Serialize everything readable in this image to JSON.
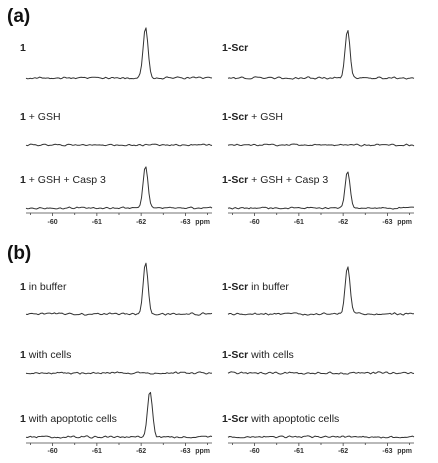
{
  "figure": {
    "panels": [
      {
        "label": "(a)"
      },
      {
        "label": "(b)"
      }
    ]
  },
  "chart_data": [
    {
      "type": "line",
      "panel": "(a)",
      "column": "left",
      "xlabel": "ppm",
      "xticks": [
        "-60",
        "-61",
        "-62",
        "-63"
      ],
      "xlim": [
        -59.4,
        -63.6
      ],
      "x_reversed": true,
      "series": [
        {
          "label_bold": "1",
          "label_rest": "",
          "peak_ppm": -62.1,
          "peak_height": 1.0,
          "noise": 0.055
        },
        {
          "label_bold": "1",
          "label_rest": " + GSH",
          "peak_ppm": -62.1,
          "peak_height": 0.0,
          "noise": 0.05
        },
        {
          "label_bold": "1",
          "label_rest": " + GSH + Casp 3",
          "peak_ppm": -62.1,
          "peak_height": 0.8,
          "noise": 0.055
        }
      ]
    },
    {
      "type": "line",
      "panel": "(a)",
      "column": "right",
      "xlabel": "ppm",
      "xticks": [
        "-60",
        "-61",
        "-62",
        "-63"
      ],
      "xlim": [
        -59.4,
        -63.6
      ],
      "x_reversed": true,
      "series": [
        {
          "label_bold": "1-Scr",
          "label_rest": "",
          "peak_ppm": -62.1,
          "peak_height": 0.92,
          "noise": 0.06
        },
        {
          "label_bold": "1-Scr",
          "label_rest": " + GSH",
          "peak_ppm": -62.1,
          "peak_height": 0.0,
          "noise": 0.05
        },
        {
          "label_bold": "1-Scr",
          "label_rest": " + GSH + Casp 3",
          "peak_ppm": -62.1,
          "peak_height": 0.72,
          "noise": 0.055
        }
      ]
    },
    {
      "type": "line",
      "panel": "(b)",
      "column": "left",
      "xlabel": "ppm",
      "xticks": [
        "-60",
        "-61",
        "-62",
        "-63"
      ],
      "xlim": [
        -59.4,
        -63.6
      ],
      "x_reversed": true,
      "series": [
        {
          "label_bold": "1",
          "label_rest": " in buffer",
          "peak_ppm": -62.1,
          "peak_height": 0.98,
          "noise": 0.06
        },
        {
          "label_bold": "1",
          "label_rest": " with cells",
          "peak_ppm": -62.1,
          "peak_height": 0.0,
          "noise": 0.06
        },
        {
          "label_bold": "1",
          "label_rest": " with apoptotic cells",
          "peak_ppm": -62.2,
          "peak_height": 0.88,
          "noise": 0.06
        }
      ]
    },
    {
      "type": "line",
      "panel": "(b)",
      "column": "right",
      "xlabel": "ppm",
      "xticks": [
        "-60",
        "-61",
        "-62",
        "-63"
      ],
      "xlim": [
        -59.4,
        -63.6
      ],
      "x_reversed": true,
      "series": [
        {
          "label_bold": "1-Scr",
          "label_rest": " in buffer",
          "peak_ppm": -62.1,
          "peak_height": 0.93,
          "noise": 0.065
        },
        {
          "label_bold": "1-Scr",
          "label_rest": " with cells",
          "peak_ppm": -62.1,
          "peak_height": 0.0,
          "noise": 0.06
        },
        {
          "label_bold": "1-Scr",
          "label_rest": " with apoptotic cells",
          "peak_ppm": -62.1,
          "peak_height": 0.0,
          "noise": 0.06
        }
      ]
    }
  ]
}
